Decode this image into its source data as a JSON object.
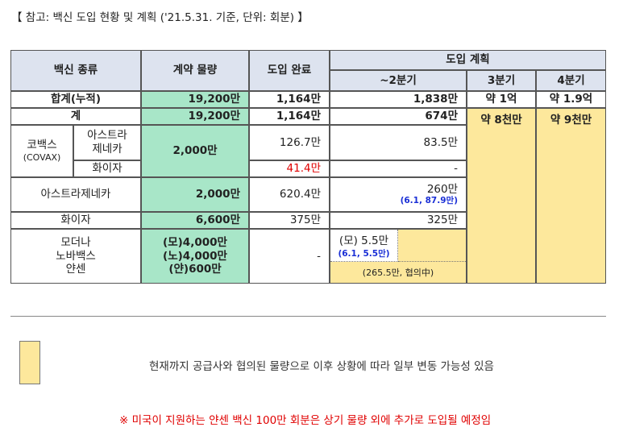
{
  "header_note": "【 참고: 백신 도입 현황 및 계획 ('21.5.31. 기준, 단위: 회분) 】",
  "columns": {
    "vaccine_type": "백신 종류",
    "contract": "계약 물량",
    "completed": "도입 완료",
    "plan": "도입 계획",
    "q2": "~2분기",
    "q3": "3분기",
    "q4": "4분기"
  },
  "rows": {
    "total": {
      "label": "합계(누적)",
      "contract": "19,200만",
      "completed": "1,164만",
      "q2": "1,838만",
      "q3": "약 1억",
      "q4": "약 1.9억"
    },
    "subtotal": {
      "label": "계",
      "contract": "19,200만",
      "completed": "1,164만",
      "q2": "674만",
      "q3": "약 8천만",
      "q4": "약 9천만"
    },
    "covax": {
      "label": "코백스",
      "sublabel": "(COVAX)",
      "contract": "2,000만",
      "az": {
        "label": "아스트라\n제네카",
        "completed": "126.7만",
        "q2": "83.5만"
      },
      "pfizer": {
        "label": "화이자",
        "completed": "41.4만",
        "q2": "-"
      }
    },
    "astrazeneca": {
      "label": "아스트라제네카",
      "contract": "2,000만",
      "completed": "620.4만",
      "q2": "260만",
      "q2_note": "(6.1, 87.9만)"
    },
    "pfizer": {
      "label": "화이자",
      "contract": "6,600만",
      "completed": "375만",
      "q2": "325만"
    },
    "others": {
      "label_lines": [
        "모더나",
        "노바백스",
        "얀센"
      ],
      "contract_lines": [
        "(모)4,000만",
        "(노)4,000만",
        "(얀)600만"
      ],
      "completed": "-",
      "q2_moderna": "(모) 5.5만",
      "q2_moderna_note": "(6.1, 5.5만)",
      "q2_janssen": "(265.5만, 협의中)"
    }
  },
  "legend_text": "현재까지 공급사와 협의된 물량으로 이후 상황에 따라 일부 변동 가능성 있음",
  "footnote": "※ 미국이 지원하는 얀센 백신 100만 회분은 상기 물량 외에 추가로 도입될 예정임",
  "colors": {
    "header": "#dde3ef",
    "green": "#a8e6c8",
    "yellow": "#fde89c",
    "red": "#e00000",
    "blue": "#1a2fd6"
  }
}
